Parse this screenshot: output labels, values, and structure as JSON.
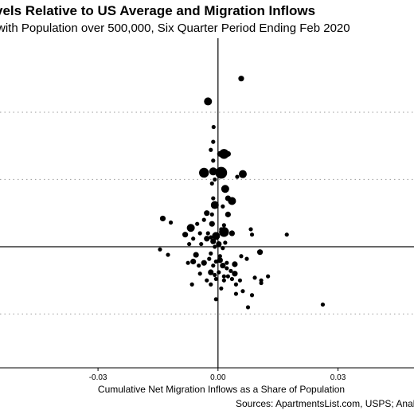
{
  "chart_data": {
    "type": "scatter",
    "title": "vels Relative to US Average and Migration Inflows",
    "subtitle": "with Population over 500,000, Six Quarter Period Ending Feb 2020",
    "xlabel": "Cumulative Net Migration Inflows as a Share of Population",
    "source": "Sources: ApartmentsList.com, USPS; Analy",
    "xlim": [
      -0.0545,
      0.049
    ],
    "ylim": [
      -0.9,
      1.55
    ],
    "x_ticks": [
      {
        "value": -0.03,
        "label": "-0.03"
      },
      {
        "value": 0.0,
        "label": "0.00"
      },
      {
        "value": 0.03,
        "label": "0.03"
      }
    ],
    "y_gridlines": [
      -0.5,
      0.5,
      1.0
    ],
    "reference_lines": {
      "x": 0,
      "y": 0
    },
    "bubble_size_legend": "population",
    "points": [
      {
        "x": 0.0058,
        "y": 1.25,
        "size": 2
      },
      {
        "x": -0.0025,
        "y": 1.08,
        "size": 3
      },
      {
        "x": -0.0011,
        "y": 0.89,
        "size": 1
      },
      {
        "x": -0.0012,
        "y": 0.78,
        "size": 1
      },
      {
        "x": -0.0018,
        "y": 0.72,
        "size": 1
      },
      {
        "x": 0.0005,
        "y": 0.69,
        "size": 2
      },
      {
        "x": 0.0015,
        "y": 0.69,
        "size": 4
      },
      {
        "x": -0.0012,
        "y": 0.64,
        "size": 1
      },
      {
        "x": 0.0025,
        "y": 0.69,
        "size": 2
      },
      {
        "x": 0.0008,
        "y": 0.55,
        "size": 5
      },
      {
        "x": -0.0035,
        "y": 0.55,
        "size": 4
      },
      {
        "x": -0.0012,
        "y": 0.56,
        "size": 3
      },
      {
        "x": 0.0062,
        "y": 0.54,
        "size": 3
      },
      {
        "x": 0.0048,
        "y": 0.52,
        "size": 1
      },
      {
        "x": -0.0008,
        "y": 0.5,
        "size": 1
      },
      {
        "x": -0.0015,
        "y": 0.47,
        "size": 1
      },
      {
        "x": 0.0018,
        "y": 0.43,
        "size": 3
      },
      {
        "x": 0.0035,
        "y": 0.34,
        "size": 3
      },
      {
        "x": 0.0025,
        "y": 0.36,
        "size": 2
      },
      {
        "x": -0.0012,
        "y": 0.36,
        "size": 1
      },
      {
        "x": -0.0008,
        "y": 0.31,
        "size": 3
      },
      {
        "x": 0.0012,
        "y": 0.3,
        "size": 1
      },
      {
        "x": -0.0028,
        "y": 0.25,
        "size": 2
      },
      {
        "x": -0.0015,
        "y": 0.24,
        "size": 1
      },
      {
        "x": 0.0025,
        "y": 0.24,
        "size": 2
      },
      {
        "x": -0.0035,
        "y": 0.2,
        "size": 1
      },
      {
        "x": -0.0052,
        "y": 0.17,
        "size": 1
      },
      {
        "x": -0.0015,
        "y": 0.17,
        "size": 2
      },
      {
        "x": -0.0138,
        "y": 0.21,
        "size": 2
      },
      {
        "x": -0.0118,
        "y": 0.18,
        "size": 1
      },
      {
        "x": 0.0015,
        "y": 0.16,
        "size": 1
      },
      {
        "x": -0.0068,
        "y": 0.14,
        "size": 3
      },
      {
        "x": 0.0015,
        "y": 0.11,
        "size": 4
      },
      {
        "x": 0.0008,
        "y": 0.13,
        "size": 1
      },
      {
        "x": -0.0045,
        "y": 0.1,
        "size": 1
      },
      {
        "x": -0.0025,
        "y": 0.1,
        "size": 1
      },
      {
        "x": 0.0035,
        "y": 0.1,
        "size": 2
      },
      {
        "x": -0.0082,
        "y": 0.09,
        "size": 2
      },
      {
        "x": -0.0005,
        "y": 0.08,
        "size": 3
      },
      {
        "x": -0.0018,
        "y": 0.07,
        "size": 1
      },
      {
        "x": 0.0082,
        "y": 0.13,
        "size": 1
      },
      {
        "x": 0.0085,
        "y": 0.09,
        "size": 1
      },
      {
        "x": 0.0172,
        "y": 0.09,
        "size": 1
      },
      {
        "x": -0.0028,
        "y": 0.06,
        "size": 2
      },
      {
        "x": -0.0062,
        "y": 0.06,
        "size": 1
      },
      {
        "x": -0.0012,
        "y": 0.04,
        "size": 2
      },
      {
        "x": 0.0018,
        "y": 0.03,
        "size": 1
      },
      {
        "x": -0.0042,
        "y": 0.02,
        "size": 1
      },
      {
        "x": 0.0002,
        "y": 0.02,
        "size": 2
      },
      {
        "x": -0.0072,
        "y": 0.02,
        "size": 1
      },
      {
        "x": -0.0008,
        "y": 0.0,
        "size": 1
      },
      {
        "x": 0.0012,
        "y": -0.01,
        "size": 1
      },
      {
        "x": -0.0145,
        "y": -0.02,
        "size": 1
      },
      {
        "x": -0.0055,
        "y": -0.06,
        "size": 2
      },
      {
        "x": -0.0018,
        "y": -0.05,
        "size": 1
      },
      {
        "x": -0.0125,
        "y": -0.06,
        "size": 1
      },
      {
        "x": 0.0005,
        "y": -0.07,
        "size": 1
      },
      {
        "x": 0.0058,
        "y": -0.07,
        "size": 1
      },
      {
        "x": 0.0105,
        "y": -0.04,
        "size": 2
      },
      {
        "x": 0.0072,
        "y": -0.09,
        "size": 1
      },
      {
        "x": 0.0005,
        "y": -0.1,
        "size": 2
      },
      {
        "x": -0.0022,
        "y": -0.09,
        "size": 1
      },
      {
        "x": -0.0062,
        "y": -0.11,
        "size": 2
      },
      {
        "x": -0.0035,
        "y": -0.12,
        "size": 2
      },
      {
        "x": -0.0005,
        "y": -0.11,
        "size": 1
      },
      {
        "x": 0.0022,
        "y": -0.12,
        "size": 1
      },
      {
        "x": -0.0075,
        "y": -0.12,
        "size": 1
      },
      {
        "x": 0.0042,
        "y": -0.13,
        "size": 2
      },
      {
        "x": 0.0012,
        "y": -0.14,
        "size": 2
      },
      {
        "x": -0.0012,
        "y": -0.14,
        "size": 1
      },
      {
        "x": -0.0048,
        "y": -0.14,
        "size": 1
      },
      {
        "x": 0.0022,
        "y": -0.16,
        "size": 1
      },
      {
        "x": 0.0032,
        "y": -0.18,
        "size": 1
      },
      {
        "x": -0.0018,
        "y": -0.19,
        "size": 2
      },
      {
        "x": 0.0002,
        "y": -0.19,
        "size": 1
      },
      {
        "x": -0.0045,
        "y": -0.2,
        "size": 1
      },
      {
        "x": 0.0042,
        "y": -0.2,
        "size": 2
      },
      {
        "x": -0.0008,
        "y": -0.21,
        "size": 1
      },
      {
        "x": 0.0015,
        "y": -0.22,
        "size": 1
      },
      {
        "x": 0.0025,
        "y": -0.22,
        "size": 1
      },
      {
        "x": -0.0005,
        "y": -0.24,
        "size": 1
      },
      {
        "x": 0.0125,
        "y": -0.22,
        "size": 1
      },
      {
        "x": 0.0092,
        "y": -0.23,
        "size": 1
      },
      {
        "x": 0.0035,
        "y": -0.24,
        "size": 1
      },
      {
        "x": -0.0028,
        "y": -0.25,
        "size": 1
      },
      {
        "x": 0.0015,
        "y": -0.25,
        "size": 1
      },
      {
        "x": 0.0055,
        "y": -0.25,
        "size": 1
      },
      {
        "x": 0.0108,
        "y": -0.25,
        "size": 1
      },
      {
        "x": 0.0108,
        "y": -0.27,
        "size": 1
      },
      {
        "x": -0.0065,
        "y": -0.28,
        "size": 1
      },
      {
        "x": -0.0018,
        "y": -0.28,
        "size": 1
      },
      {
        "x": 0.0045,
        "y": -0.28,
        "size": 1
      },
      {
        "x": 0.0008,
        "y": -0.31,
        "size": 1
      },
      {
        "x": 0.0062,
        "y": -0.33,
        "size": 1
      },
      {
        "x": 0.0045,
        "y": -0.35,
        "size": 1
      },
      {
        "x": 0.0085,
        "y": -0.36,
        "size": 1
      },
      {
        "x": -0.0005,
        "y": -0.39,
        "size": 1
      },
      {
        "x": 0.0262,
        "y": -0.43,
        "size": 1
      },
      {
        "x": 0.0075,
        "y": -0.45,
        "size": 1
      }
    ]
  }
}
